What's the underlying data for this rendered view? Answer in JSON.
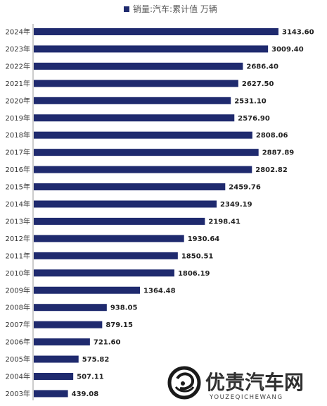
{
  "chart_data": {
    "type": "bar",
    "orientation": "horizontal",
    "legend_position": "top",
    "grid": false,
    "xlim": [
      0,
      3143.6
    ],
    "colors": {
      "bar": "#1f2a6e"
    },
    "series": [
      {
        "name": "销量:汽车:累计值 万辆"
      }
    ],
    "categories": [
      "2024年",
      "2023年",
      "2022年",
      "2021年",
      "2020年",
      "2019年",
      "2018年",
      "2017年",
      "2016年",
      "2015年",
      "2014年",
      "2013年",
      "2012年",
      "2011年",
      "2010年",
      "2009年",
      "2008年",
      "2007年",
      "2006年",
      "2005年",
      "2004年",
      "2003年"
    ],
    "values": [
      3143.6,
      3009.4,
      2686.4,
      2627.5,
      2531.1,
      2576.9,
      2808.06,
      2887.89,
      2802.82,
      2459.76,
      2349.19,
      2198.41,
      1930.64,
      1850.51,
      1806.19,
      1364.48,
      938.05,
      879.15,
      721.6,
      575.82,
      507.11,
      439.08
    ],
    "value_labels": [
      "3143.60",
      "3009.40",
      "2686.40",
      "2627.50",
      "2531.10",
      "2576.90",
      "2808.06",
      "2887.89",
      "2802.82",
      "2459.76",
      "2349.19",
      "2198.41",
      "1930.64",
      "1850.51",
      "1806.19",
      "1364.48",
      "938.05",
      "879.15",
      "721.60",
      "575.82",
      "507.11",
      "439.08"
    ]
  },
  "watermark": {
    "text": "优责汽车网",
    "subtext": "YOUZEQICHEWANG"
  }
}
